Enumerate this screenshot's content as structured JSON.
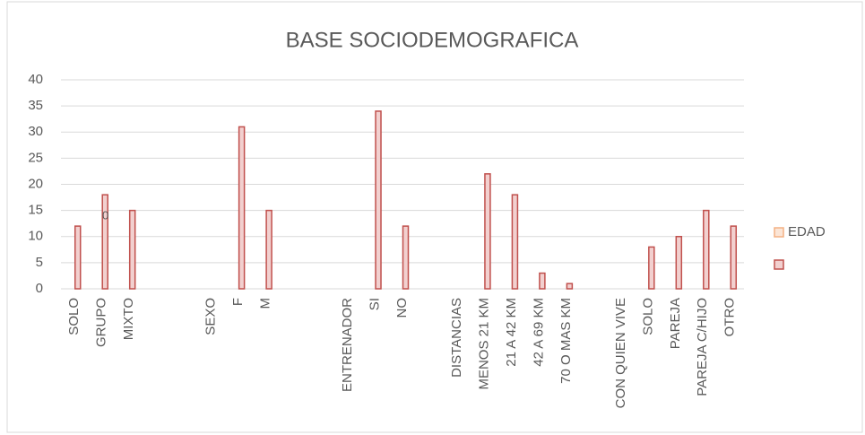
{
  "chart_data": {
    "type": "bar",
    "title": "BASE SOCIODEMOGRAFICA",
    "categories": [
      "SOLO",
      "GRUPO",
      "MIXTO",
      null,
      null,
      "SEXO",
      "F",
      "M",
      null,
      null,
      "ENTRENADOR",
      "SI",
      "NO",
      null,
      "DISTANCIAS",
      "MENOS 21 KM",
      "21 A 42 KM",
      "42 A 69 KM",
      "70 O MAS KM",
      null,
      "CON QUIEN VIVE",
      "SOLO",
      "PAREJA",
      "PAREJA C/HIJO",
      "OTRO"
    ],
    "series": [
      {
        "name": "EDAD",
        "color": "#f4b183",
        "values": [
          null,
          null,
          null,
          null,
          null,
          null,
          null,
          null,
          null,
          null,
          null,
          null,
          null,
          null,
          null,
          null,
          null,
          null,
          null,
          null,
          null,
          null,
          null,
          null,
          null
        ]
      },
      {
        "color": "#c0504d",
        "values": [
          12,
          18,
          15,
          null,
          null,
          null,
          31,
          15,
          null,
          null,
          null,
          34,
          12,
          null,
          null,
          22,
          18,
          3,
          1,
          null,
          null,
          8,
          10,
          15,
          12
        ]
      }
    ],
    "annotations": [
      "0"
    ],
    "ylim": [
      0,
      40
    ],
    "yticks": [
      0,
      5,
      10,
      15,
      20,
      25,
      30,
      35,
      40
    ],
    "grid": true,
    "legend": "right"
  }
}
